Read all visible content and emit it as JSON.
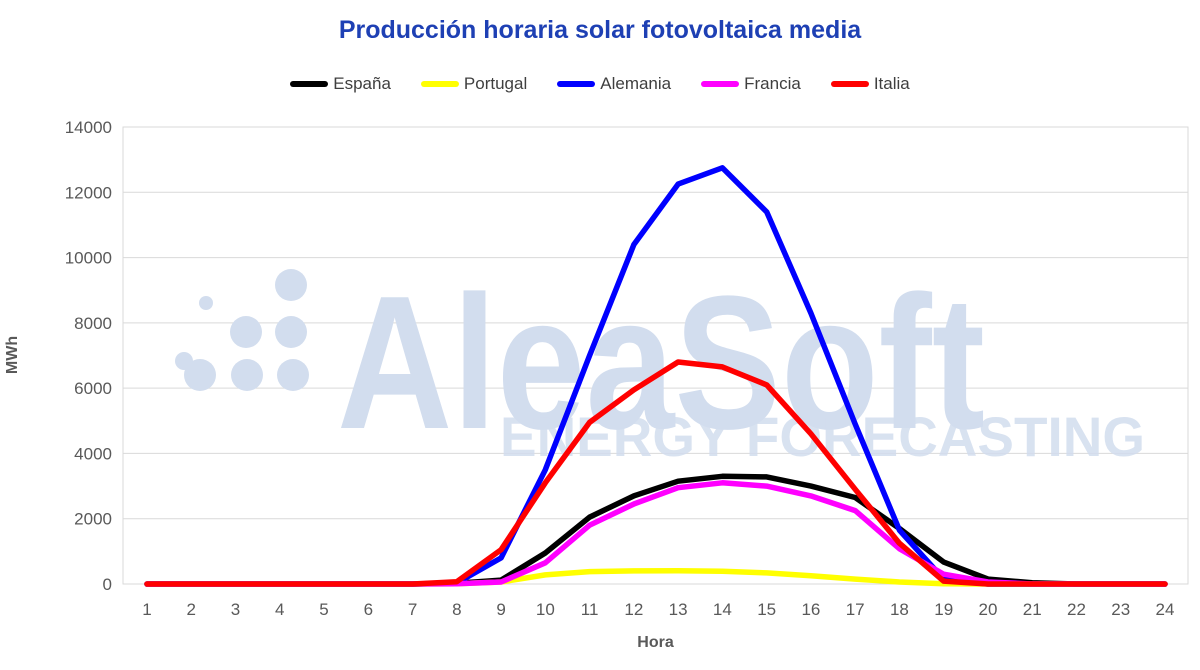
{
  "title": "Producción horaria solar fotovoltaica media",
  "watermark": {
    "line1": "AleaSoft",
    "line2": "ENERGY FORECASTING",
    "color": "#d2ddee"
  },
  "colors": {
    "title": "#1E40B4",
    "gridline": "#d9d9d9",
    "tick_text": "#595959",
    "plot_border": "#d9d9d9"
  },
  "chart_data": {
    "type": "line",
    "title": "Producción horaria solar fotovoltaica media",
    "xlabel": "Hora",
    "ylabel": "MWh",
    "x": [
      1,
      2,
      3,
      4,
      5,
      6,
      7,
      8,
      9,
      10,
      11,
      12,
      13,
      14,
      15,
      16,
      17,
      18,
      19,
      20,
      21,
      22,
      23,
      24
    ],
    "ylim": [
      0,
      14000
    ],
    "ytick_step": 2000,
    "yticks": [
      0,
      2000,
      4000,
      6000,
      8000,
      10000,
      12000,
      14000
    ],
    "grid": true,
    "legend_position": "top",
    "series": [
      {
        "name": "España",
        "color": "#000000",
        "values": [
          0,
          0,
          0,
          0,
          0,
          0,
          0,
          20,
          120,
          950,
          2050,
          2700,
          3150,
          3300,
          3280,
          3000,
          2650,
          1700,
          670,
          150,
          40,
          0,
          0,
          0
        ]
      },
      {
        "name": "Portugal",
        "color": "#FFFF00",
        "values": [
          0,
          0,
          0,
          0,
          0,
          0,
          0,
          10,
          60,
          280,
          380,
          400,
          405,
          390,
          340,
          250,
          150,
          60,
          10,
          0,
          0,
          0,
          0,
          0
        ]
      },
      {
        "name": "Alemania",
        "color": "#0000FF",
        "values": [
          0,
          0,
          0,
          0,
          0,
          0,
          0,
          30,
          800,
          3500,
          7000,
          10400,
          12250,
          12750,
          11400,
          8300,
          4900,
          1650,
          150,
          0,
          0,
          0,
          0,
          0
        ]
      },
      {
        "name": "Francia",
        "color": "#FF00FF",
        "values": [
          0,
          0,
          0,
          0,
          0,
          0,
          0,
          10,
          60,
          650,
          1800,
          2450,
          2950,
          3100,
          3000,
          2700,
          2250,
          1080,
          300,
          60,
          0,
          0,
          0,
          0
        ]
      },
      {
        "name": "Italia",
        "color": "#FF0000",
        "values": [
          0,
          0,
          0,
          0,
          0,
          0,
          0,
          70,
          1050,
          3100,
          4950,
          5950,
          6800,
          6650,
          6100,
          4600,
          2900,
          1250,
          90,
          0,
          0,
          0,
          0,
          0
        ]
      }
    ]
  }
}
